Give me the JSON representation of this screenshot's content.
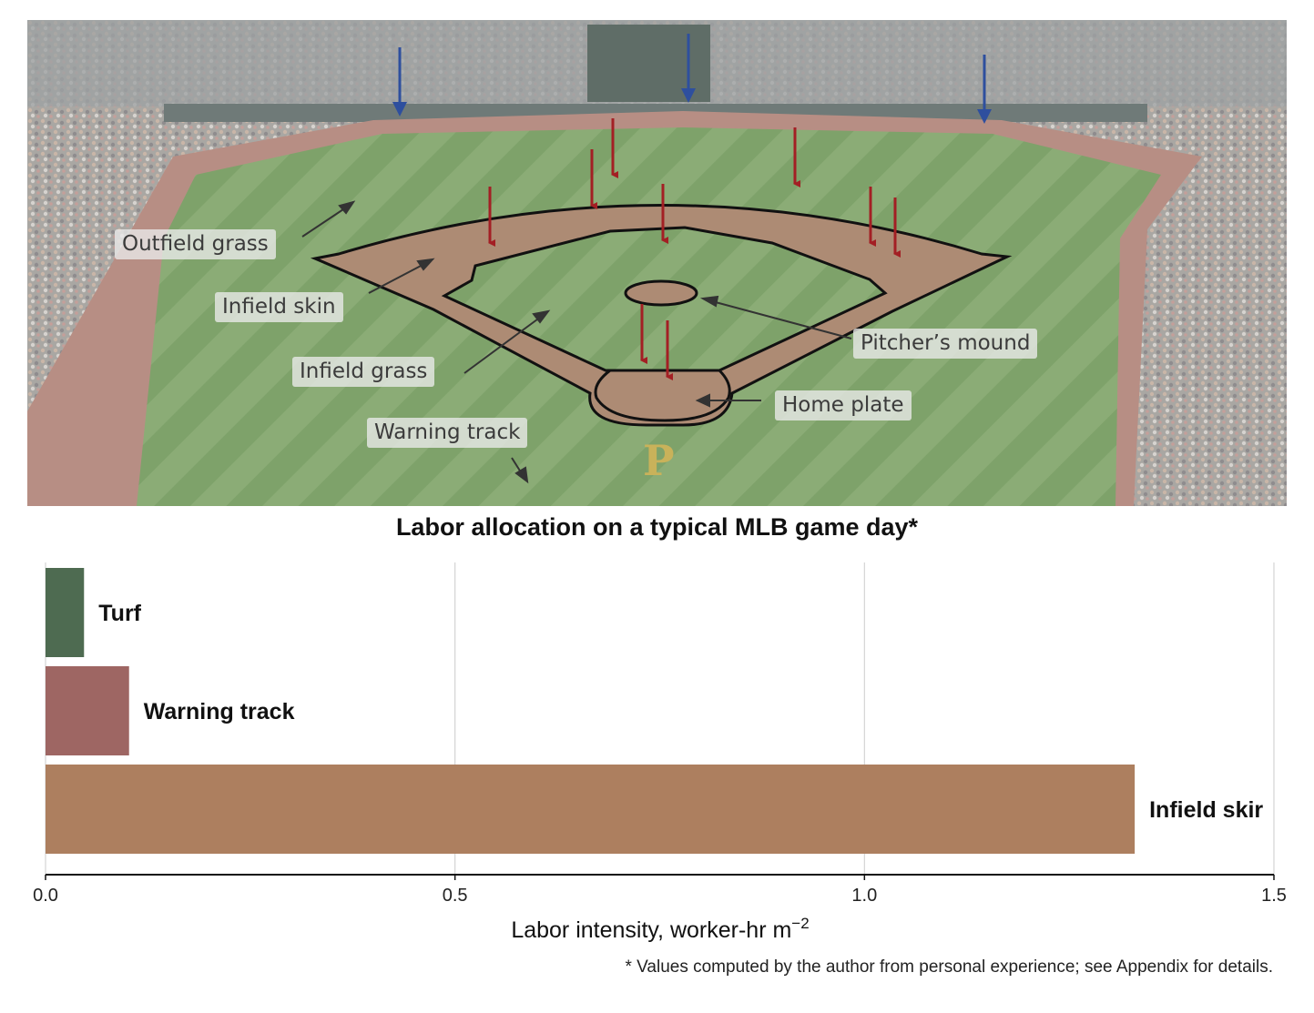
{
  "photo": {
    "labels": {
      "outfield_grass": "Outfield grass",
      "infield_skin": "Infield skin",
      "infield_grass": "Infield grass",
      "warning_track": "Warning track",
      "pitchers_mound": "Pitcher’s mound",
      "home_plate": "Home plate"
    },
    "arrow_colors": {
      "red": "#a31f24",
      "blue": "#2e4f9e",
      "pointer": "#333333"
    }
  },
  "chart_data": {
    "type": "bar",
    "orientation": "horizontal",
    "title": "Labor allocation on a typical MLB game day*",
    "categories": [
      "Turf",
      "Warning track",
      "Infield skir"
    ],
    "values": [
      0.047,
      0.102,
      1.33
    ],
    "colors": [
      "#4e6b51",
      "#9e6663",
      "#ad7f5f"
    ],
    "xlabel": "Labor intensity, worker-hr m",
    "xlabel_superscript": "−2",
    "xlim": [
      0,
      1.5
    ],
    "xticks": [
      "0.0",
      "0.5",
      "1.0",
      "1.5"
    ],
    "grid": "vertical",
    "footnote": "* Values computed by the author from personal experience; see Appendix for details."
  }
}
